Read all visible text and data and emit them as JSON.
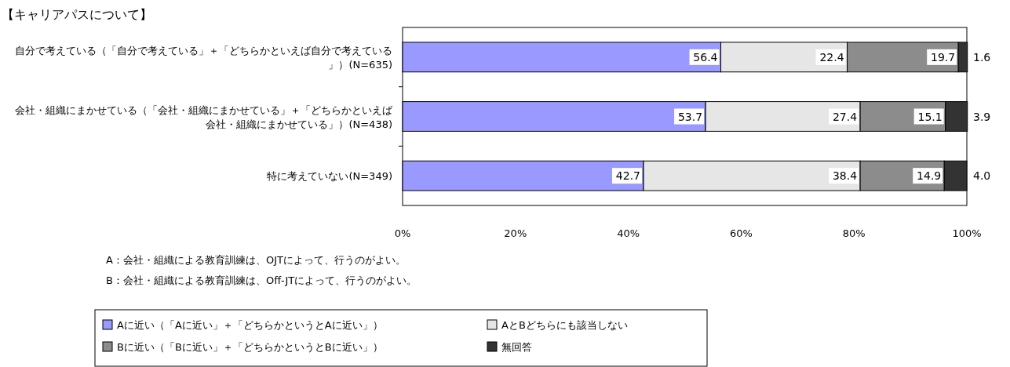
{
  "chart_data": {
    "type": "bar",
    "orientation": "horizontal",
    "stacked": true,
    "title": "【キャリアパスについて】",
    "categories": [
      "自分で考えている（「自分で考えている」＋「どちらかといえば自分で考えている」）(N=635)",
      "会社・組織にまかせている（「会社・組織にまかせている」＋「どちらかといえば会社・組織にまかせている」）(N=438)",
      "特に考えていない(N=349)"
    ],
    "series": [
      {
        "name": "Aに近い（「Aに近い」＋「どちらかというとAに近い」）",
        "color": "#9999ff",
        "values": [
          56.4,
          53.7,
          42.7
        ],
        "value_labels": [
          "56.4",
          "53.7",
          "42.7"
        ]
      },
      {
        "name": "AとBどちらにも該当しない",
        "color": "#e6e6e6",
        "values": [
          22.4,
          27.4,
          38.4
        ],
        "value_labels": [
          "22.4",
          "27.4",
          "38.4"
        ]
      },
      {
        "name": "Bに近い（「Bに近い」＋「どちらかというとBに近い」）",
        "color": "#8c8c8c",
        "values": [
          19.7,
          15.1,
          14.9
        ],
        "value_labels": [
          "19.7",
          "15.1",
          "14.9"
        ]
      },
      {
        "name": "無回答",
        "color": "#333333",
        "values": [
          1.6,
          3.9,
          4.0
        ],
        "value_labels": [
          "1.6",
          "3.9",
          "4.0"
        ]
      }
    ],
    "xlim": [
      0,
      100
    ],
    "xticks": [
      {
        "value": 0,
        "label": "0%"
      },
      {
        "value": 20,
        "label": "20%"
      },
      {
        "value": 40,
        "label": "40%"
      },
      {
        "value": 60,
        "label": "60%"
      },
      {
        "value": 80,
        "label": "80%"
      },
      {
        "value": 100,
        "label": "100%"
      }
    ],
    "legend": "bottom",
    "grid": false,
    "annotations": [
      "A：会社・組織による教育訓練は、OJTによって、行うのがよい。",
      "B：会社・組織による教育訓練は、Off-JTによって、行うのがよい。"
    ]
  }
}
